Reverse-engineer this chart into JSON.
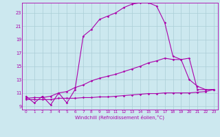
{
  "xlabel": "Windchill (Refroidissement éolien,°C)",
  "background_color": "#cce8ef",
  "grid_color": "#aacdd6",
  "line_color": "#aa00aa",
  "xlim": [
    -0.5,
    23.5
  ],
  "ylim": [
    8.5,
    24.5
  ],
  "xticks": [
    0,
    1,
    2,
    3,
    4,
    5,
    6,
    7,
    8,
    9,
    10,
    11,
    12,
    13,
    14,
    15,
    16,
    17,
    18,
    19,
    20,
    21,
    22,
    23
  ],
  "yticks": [
    9,
    11,
    13,
    15,
    17,
    19,
    21,
    23
  ],
  "series1_x": [
    0,
    1,
    2,
    3,
    4,
    5,
    6,
    7,
    8,
    9,
    10,
    11,
    12,
    13,
    14,
    15,
    16,
    17,
    18,
    19,
    20,
    21,
    22,
    23
  ],
  "series1_y": [
    10.5,
    9.5,
    10.5,
    9.2,
    11.0,
    9.5,
    11.5,
    19.5,
    20.5,
    22.0,
    22.5,
    23.0,
    23.8,
    24.3,
    24.5,
    24.5,
    24.0,
    21.5,
    16.5,
    16.0,
    13.0,
    12.0,
    11.5,
    11.5
  ],
  "series2_x": [
    0,
    1,
    2,
    3,
    4,
    5,
    6,
    7,
    8,
    9,
    10,
    11,
    12,
    13,
    14,
    15,
    16,
    17,
    18,
    19,
    20,
    21,
    22,
    23
  ],
  "series2_y": [
    10.2,
    10.3,
    10.3,
    10.5,
    11.0,
    11.2,
    11.8,
    12.2,
    12.8,
    13.2,
    13.5,
    13.8,
    14.2,
    14.6,
    15.0,
    15.5,
    15.8,
    16.2,
    16.0,
    16.0,
    16.2,
    11.5,
    11.5,
    11.5
  ],
  "series3_x": [
    0,
    1,
    2,
    3,
    4,
    5,
    6,
    7,
    8,
    9,
    10,
    11,
    12,
    13,
    14,
    15,
    16,
    17,
    18,
    19,
    20,
    21,
    22,
    23
  ],
  "series3_y": [
    10.0,
    10.0,
    10.0,
    10.0,
    10.2,
    10.2,
    10.2,
    10.3,
    10.3,
    10.4,
    10.4,
    10.5,
    10.6,
    10.7,
    10.8,
    10.9,
    10.9,
    11.0,
    11.0,
    11.0,
    11.0,
    11.1,
    11.2,
    11.5
  ]
}
